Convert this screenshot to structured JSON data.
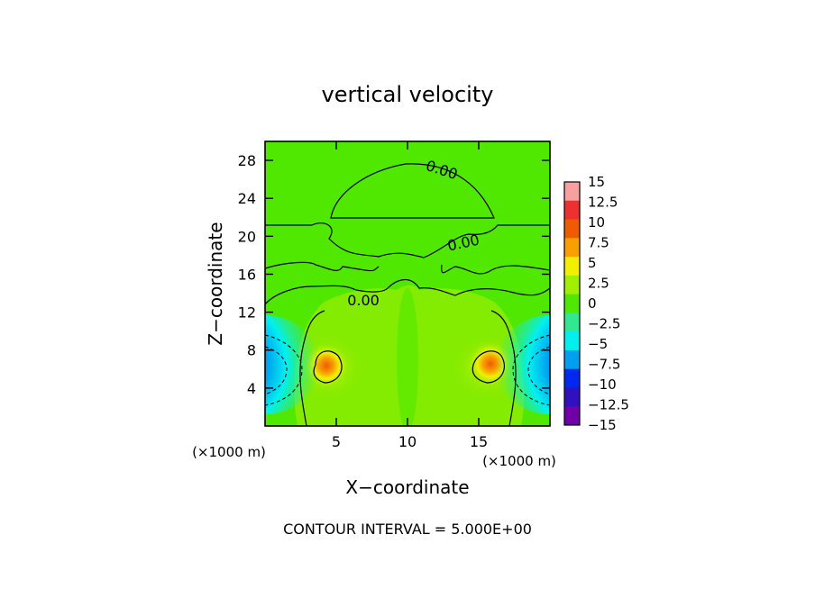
{
  "chart_data": {
    "type": "heatmap",
    "title": "vertical velocity",
    "xlabel": "X−coordinate",
    "ylabel": "Z−coordinate",
    "x_unit_left": "(×1000 m)",
    "x_unit_right": "(×1000 m)",
    "xlim": [
      0,
      20
    ],
    "ylim": [
      0,
      30
    ],
    "x_ticks": [
      5,
      10,
      15
    ],
    "y_ticks": [
      4,
      8,
      12,
      16,
      20,
      24,
      28
    ],
    "contour_labels": [
      {
        "text": "0.00",
        "x": 12.3,
        "y": 26.5,
        "angle": 18
      },
      {
        "text": "0.00",
        "x": 14.0,
        "y": 18.8,
        "angle": -12
      },
      {
        "text": "0.00",
        "x": 6.9,
        "y": 12.7,
        "angle": 0
      }
    ],
    "colorbar": {
      "levels": [
        "15",
        "12.5",
        "10",
        "7.5",
        "5",
        "2.5",
        "0",
        "−2.5",
        "−5",
        "−7.5",
        "−10",
        "−12.5",
        "−15"
      ],
      "colors": [
        "#f8a0a0",
        "#f03030",
        "#f05a00",
        "#f8a000",
        "#f0f000",
        "#a0f000",
        "#50e800",
        "#30e890",
        "#00f0f0",
        "#00a0f0",
        "#0028f0",
        "#3010c0",
        "#7000a8"
      ]
    },
    "contour_interval_text": "CONTOUR INTERVAL = 5.000E+00"
  }
}
